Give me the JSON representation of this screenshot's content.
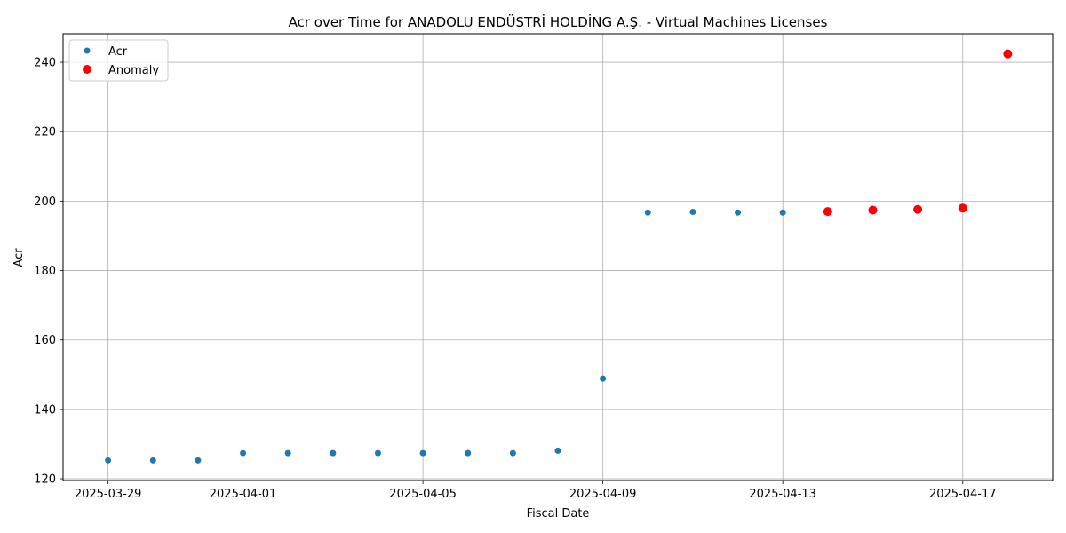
{
  "chart_data": {
    "type": "scatter",
    "title": "Acr over Time for ANADOLU ENDÜSTRİ HOLDİNG A.Ş. - Virtual Machines Licenses",
    "xlabel": "Fiscal Date",
    "ylabel": "Acr",
    "xlim": [
      "2025-03-28",
      "2025-04-19"
    ],
    "ylim": [
      119.5,
      248.2
    ],
    "x_ticks": [
      "2025-03-29",
      "2025-04-01",
      "2025-04-05",
      "2025-04-09",
      "2025-04-13",
      "2025-04-17"
    ],
    "y_ticks": [
      120,
      140,
      160,
      180,
      200,
      220,
      240
    ],
    "grid": true,
    "legend_position": "top-left",
    "series": [
      {
        "name": "Acr",
        "color": "#1f77b4",
        "points": [
          {
            "x": "2025-03-29",
            "y": 125.3
          },
          {
            "x": "2025-03-30",
            "y": 125.3
          },
          {
            "x": "2025-03-31",
            "y": 125.3
          },
          {
            "x": "2025-04-01",
            "y": 127.4
          },
          {
            "x": "2025-04-02",
            "y": 127.4
          },
          {
            "x": "2025-04-03",
            "y": 127.4
          },
          {
            "x": "2025-04-04",
            "y": 127.4
          },
          {
            "x": "2025-04-05",
            "y": 127.4
          },
          {
            "x": "2025-04-06",
            "y": 127.4
          },
          {
            "x": "2025-04-07",
            "y": 127.4
          },
          {
            "x": "2025-04-08",
            "y": 128.1
          },
          {
            "x": "2025-04-09",
            "y": 148.9
          },
          {
            "x": "2025-04-10",
            "y": 196.7
          },
          {
            "x": "2025-04-11",
            "y": 196.9
          },
          {
            "x": "2025-04-12",
            "y": 196.7
          },
          {
            "x": "2025-04-13",
            "y": 196.7
          },
          {
            "x": "2025-04-14",
            "y": 197.0
          },
          {
            "x": "2025-04-15",
            "y": 197.4
          },
          {
            "x": "2025-04-16",
            "y": 197.6
          },
          {
            "x": "2025-04-17",
            "y": 198.0
          },
          {
            "x": "2025-04-18",
            "y": 242.4
          }
        ]
      },
      {
        "name": "Anomaly",
        "color": "#ff0000",
        "points": [
          {
            "x": "2025-04-14",
            "y": 197.0
          },
          {
            "x": "2025-04-15",
            "y": 197.4
          },
          {
            "x": "2025-04-16",
            "y": 197.6
          },
          {
            "x": "2025-04-17",
            "y": 198.0
          },
          {
            "x": "2025-04-18",
            "y": 242.4
          }
        ]
      }
    ]
  }
}
